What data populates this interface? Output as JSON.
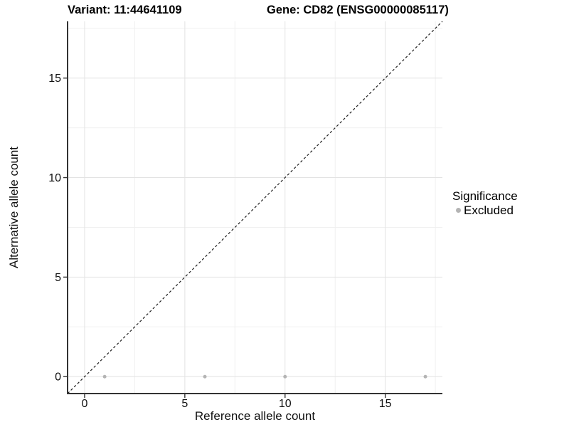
{
  "chart_data": {
    "type": "scatter",
    "title_left": "Variant: 11:44641109",
    "title_right": "Gene: CD82 (ENSG00000085117)",
    "xlabel": "Reference allele count",
    "ylabel": "Alternative allele count",
    "xlim": [
      -0.85,
      17.85
    ],
    "ylim": [
      -0.85,
      17.85
    ],
    "xticks": [
      0,
      5,
      10,
      15
    ],
    "yticks": [
      0,
      5,
      10,
      15
    ],
    "xminor": [
      2.5,
      7.5,
      12.5,
      17.5
    ],
    "yminor": [
      2.5,
      7.5,
      12.5,
      17.5
    ],
    "grid": "major and minor gridlines, white background",
    "reference_line": {
      "type": "identity y=x",
      "style": "dashed",
      "from": -0.85,
      "to": 17.85
    },
    "series": [
      {
        "name": "Excluded",
        "color": "#b4b4b4",
        "points": [
          [
            1,
            0
          ],
          [
            6,
            0
          ],
          [
            10,
            0
          ],
          [
            17,
            0
          ]
        ]
      }
    ],
    "legend": {
      "title": "Significance",
      "position": "right",
      "entries": [
        {
          "label": "Excluded",
          "color": "#b4b4b4"
        }
      ]
    }
  },
  "colors": {
    "background": "#ffffff",
    "grid_major": "#e3e3e3",
    "grid_minor": "#f0f0f0",
    "axis_line": "#333333",
    "tick": "#333333",
    "text": "#111111",
    "point": "#b4b4b4",
    "dashed_line": "#1f1f1f"
  }
}
